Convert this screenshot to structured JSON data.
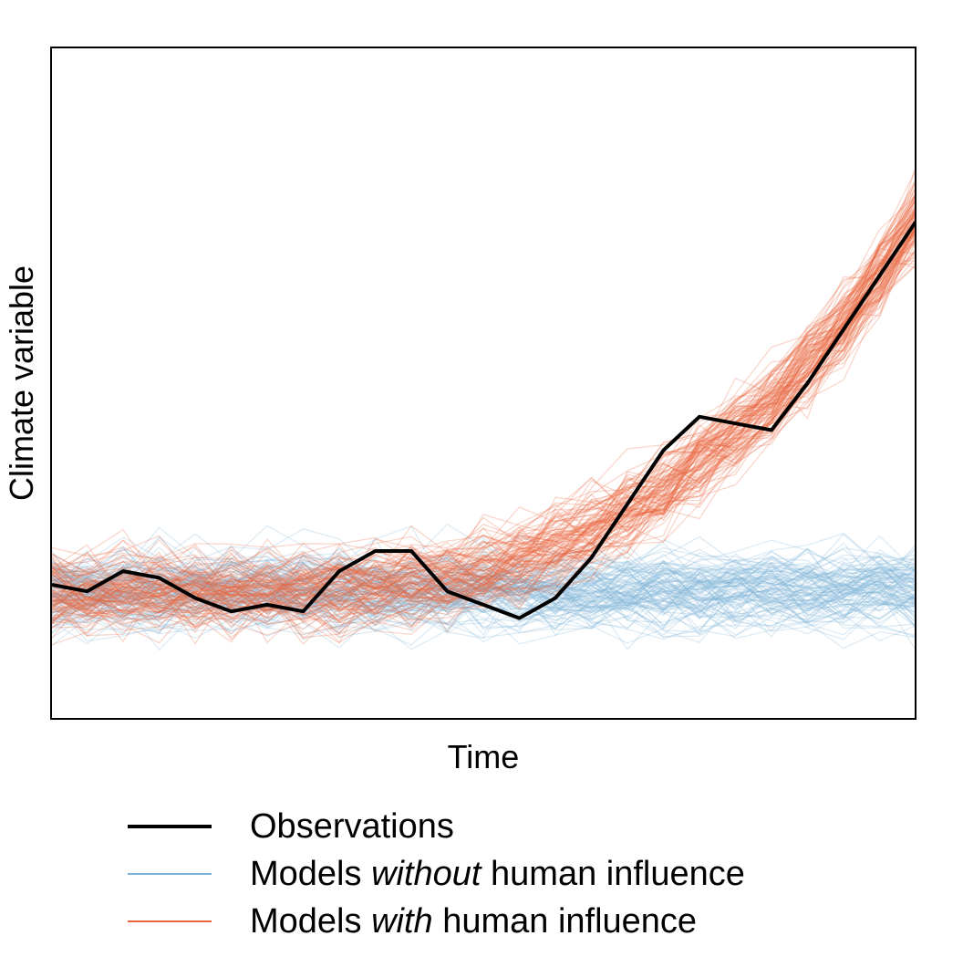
{
  "chart_data": {
    "type": "line",
    "xlabel": "Time",
    "ylabel": "Climate variable",
    "x_ticks_shown": false,
    "y_ticks_shown": false,
    "grid": false,
    "legend_position": "bottom",
    "x": [
      1,
      2,
      3,
      4,
      5,
      6,
      7,
      8,
      9,
      10,
      11,
      12,
      13,
      14,
      15,
      16,
      17,
      18,
      19,
      20,
      21,
      22,
      23,
      24,
      25
    ],
    "ylim": [
      0,
      1
    ],
    "series": [
      {
        "name": "Observations",
        "color": "#000000",
        "values": [
          0.2,
          0.19,
          0.22,
          0.21,
          0.18,
          0.16,
          0.17,
          0.16,
          0.22,
          0.25,
          0.25,
          0.19,
          0.17,
          0.15,
          0.18,
          0.24,
          0.32,
          0.4,
          0.45,
          0.44,
          0.43,
          0.5,
          0.58,
          0.66,
          0.74
        ]
      },
      {
        "name": "Models without human influence",
        "name_parts": [
          "Models ",
          "without",
          " human influence"
        ],
        "color": "#7fb2d8",
        "ensemble": true,
        "mean": 0.19,
        "spread": 0.045
      },
      {
        "name": "Models with human influence",
        "name_parts": [
          "Models ",
          "with",
          " human influence"
        ],
        "color": "#e8643e",
        "ensemble": true,
        "mean_values": [
          0.19,
          0.19,
          0.19,
          0.19,
          0.19,
          0.19,
          0.19,
          0.19,
          0.195,
          0.2,
          0.205,
          0.21,
          0.22,
          0.235,
          0.255,
          0.28,
          0.31,
          0.345,
          0.385,
          0.43,
          0.475,
          0.53,
          0.59,
          0.66,
          0.74
        ],
        "spread": 0.045
      }
    ]
  }
}
